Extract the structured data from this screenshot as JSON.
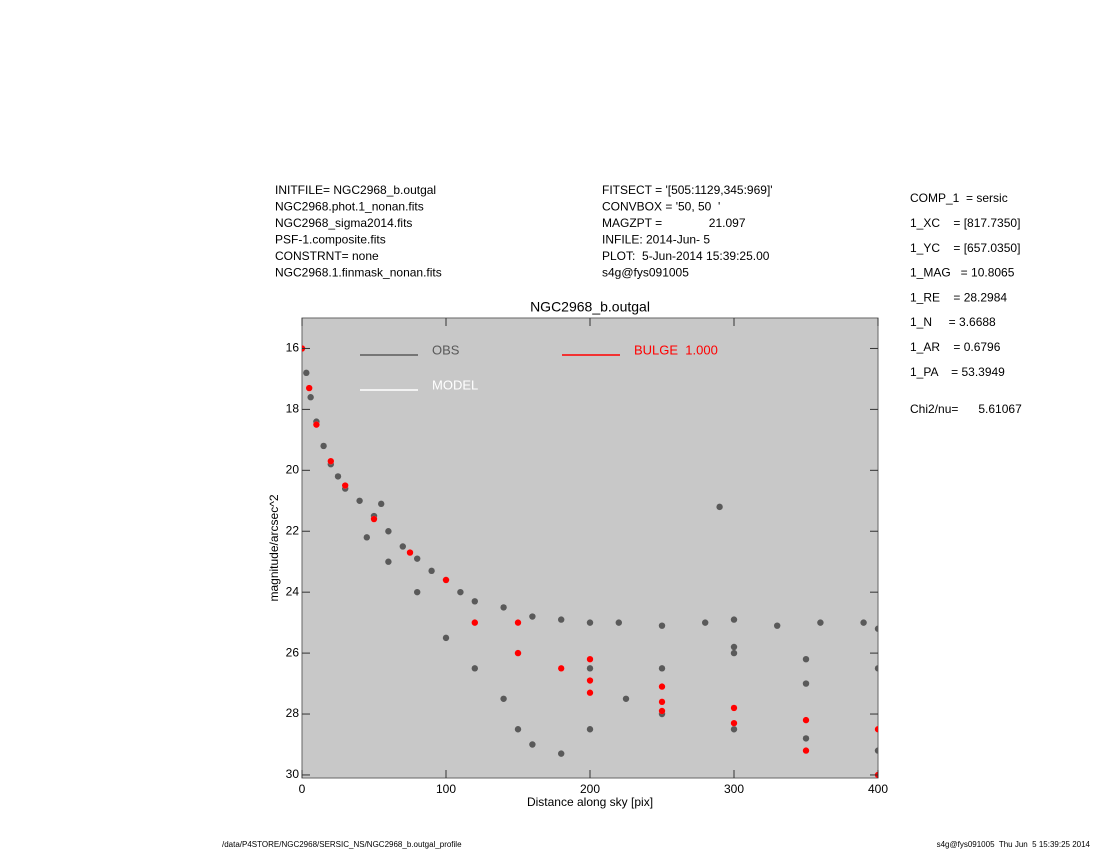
{
  "header": {
    "left": [
      "INITFILE= NGC2968_b.outgal",
      "NGC2968.phot.1_nonan.fits",
      "NGC2968_sigma2014.fits",
      "PSF-1.composite.fits",
      "CONSTRNT= none",
      "NGC2968.1.finmask_nonan.fits"
    ],
    "middle": [
      "FITSECT = '[505:1129,345:969]'",
      "CONVBOX = '50, 50  '",
      "MAGZPT =              21.097",
      "INFILE: 2014-Jun- 5",
      "PLOT:  5-Jun-2014 15:39:25.00",
      "s4g@fys091005"
    ],
    "right": [
      "COMP_1  = sersic",
      "1_XC    = [817.7350]",
      "1_YC    = [657.0350]",
      "1_MAG   = 10.8065",
      "1_RE    = 28.2984",
      "1_N     = 3.6688",
      "1_AR    = 0.6796",
      "1_PA    = 53.3949"
    ],
    "chi": "Chi2/nu=      5.61067"
  },
  "footer": {
    "left": "/data/P4STORE/NGC2968/SERSIC_NS/NGC2968_b.outgal_profile",
    "right": "s4g@fys091005  Thu Jun  5 15:39:25 2014"
  },
  "chart_data": {
    "type": "scatter",
    "title": "NGC2968_b.outgal",
    "x_label": "Distance along sky [pix]",
    "y_label": "magnitude/arcsec^2",
    "xlim": [
      0,
      400
    ],
    "ylim": [
      15,
      30.1
    ],
    "y_inverted": true,
    "xticks": [
      0,
      100,
      200,
      300,
      400
    ],
    "yticks": [
      16,
      18,
      20,
      22,
      24,
      26,
      28,
      30
    ],
    "background": "#c8c8c8",
    "series": [
      {
        "name": "OBS",
        "color": "#5a5a5a",
        "x": [
          0,
          3,
          6,
          10,
          15,
          20,
          25,
          30,
          40,
          50,
          60,
          70,
          80,
          90,
          100,
          110,
          120,
          140,
          160,
          180,
          200,
          220,
          250,
          280,
          300,
          330,
          360,
          390,
          400,
          80,
          100,
          120,
          140,
          150,
          160,
          180,
          200,
          250,
          300,
          350,
          400,
          150,
          200,
          250,
          300,
          350,
          400,
          120,
          60,
          45,
          300,
          350,
          225,
          290,
          55
        ],
        "values": [
          16.0,
          16.8,
          17.6,
          18.4,
          19.2,
          19.8,
          20.2,
          20.6,
          21.0,
          21.5,
          22.0,
          22.5,
          22.9,
          23.3,
          23.6,
          24.0,
          24.3,
          24.5,
          24.8,
          24.9,
          25.0,
          25.0,
          25.1,
          25.0,
          24.9,
          25.1,
          25.0,
          25.0,
          25.2,
          24.0,
          25.5,
          26.5,
          27.5,
          28.5,
          29.0,
          29.3,
          28.5,
          28.0,
          28.5,
          28.8,
          29.2,
          26.0,
          26.5,
          26.5,
          26.0,
          26.2,
          26.5,
          25.0,
          23.0,
          22.2,
          25.8,
          27.0,
          27.5,
          21.2,
          21.1
        ]
      },
      {
        "name": "MODEL",
        "color": "#ffffff",
        "x": [
          0,
          5,
          10,
          20,
          30,
          50,
          75,
          100,
          150,
          200,
          250,
          300,
          350,
          400,
          200,
          250,
          300,
          350,
          400,
          150,
          200,
          250,
          120,
          180
        ],
        "values": [
          16.0,
          17.3,
          18.5,
          19.7,
          20.5,
          21.6,
          22.7,
          23.6,
          25.0,
          26.2,
          27.1,
          27.8,
          28.2,
          28.5,
          26.9,
          27.6,
          28.3,
          29.2,
          30.0,
          26.0,
          27.3,
          27.9,
          25.0,
          26.5
        ]
      },
      {
        "name": "BULGE  1.000",
        "color": "#ff0000",
        "x": [
          0,
          5,
          10,
          20,
          30,
          50,
          75,
          100,
          150,
          200,
          250,
          300,
          350,
          400,
          200,
          250,
          300,
          350,
          400,
          150,
          200,
          250,
          120,
          180
        ],
        "values": [
          16.0,
          17.3,
          18.5,
          19.7,
          20.5,
          21.6,
          22.7,
          23.6,
          25.0,
          26.2,
          27.1,
          27.8,
          28.2,
          28.5,
          26.9,
          27.6,
          28.3,
          29.2,
          30.0,
          26.0,
          27.3,
          27.9,
          25.0,
          26.5
        ]
      }
    ]
  }
}
